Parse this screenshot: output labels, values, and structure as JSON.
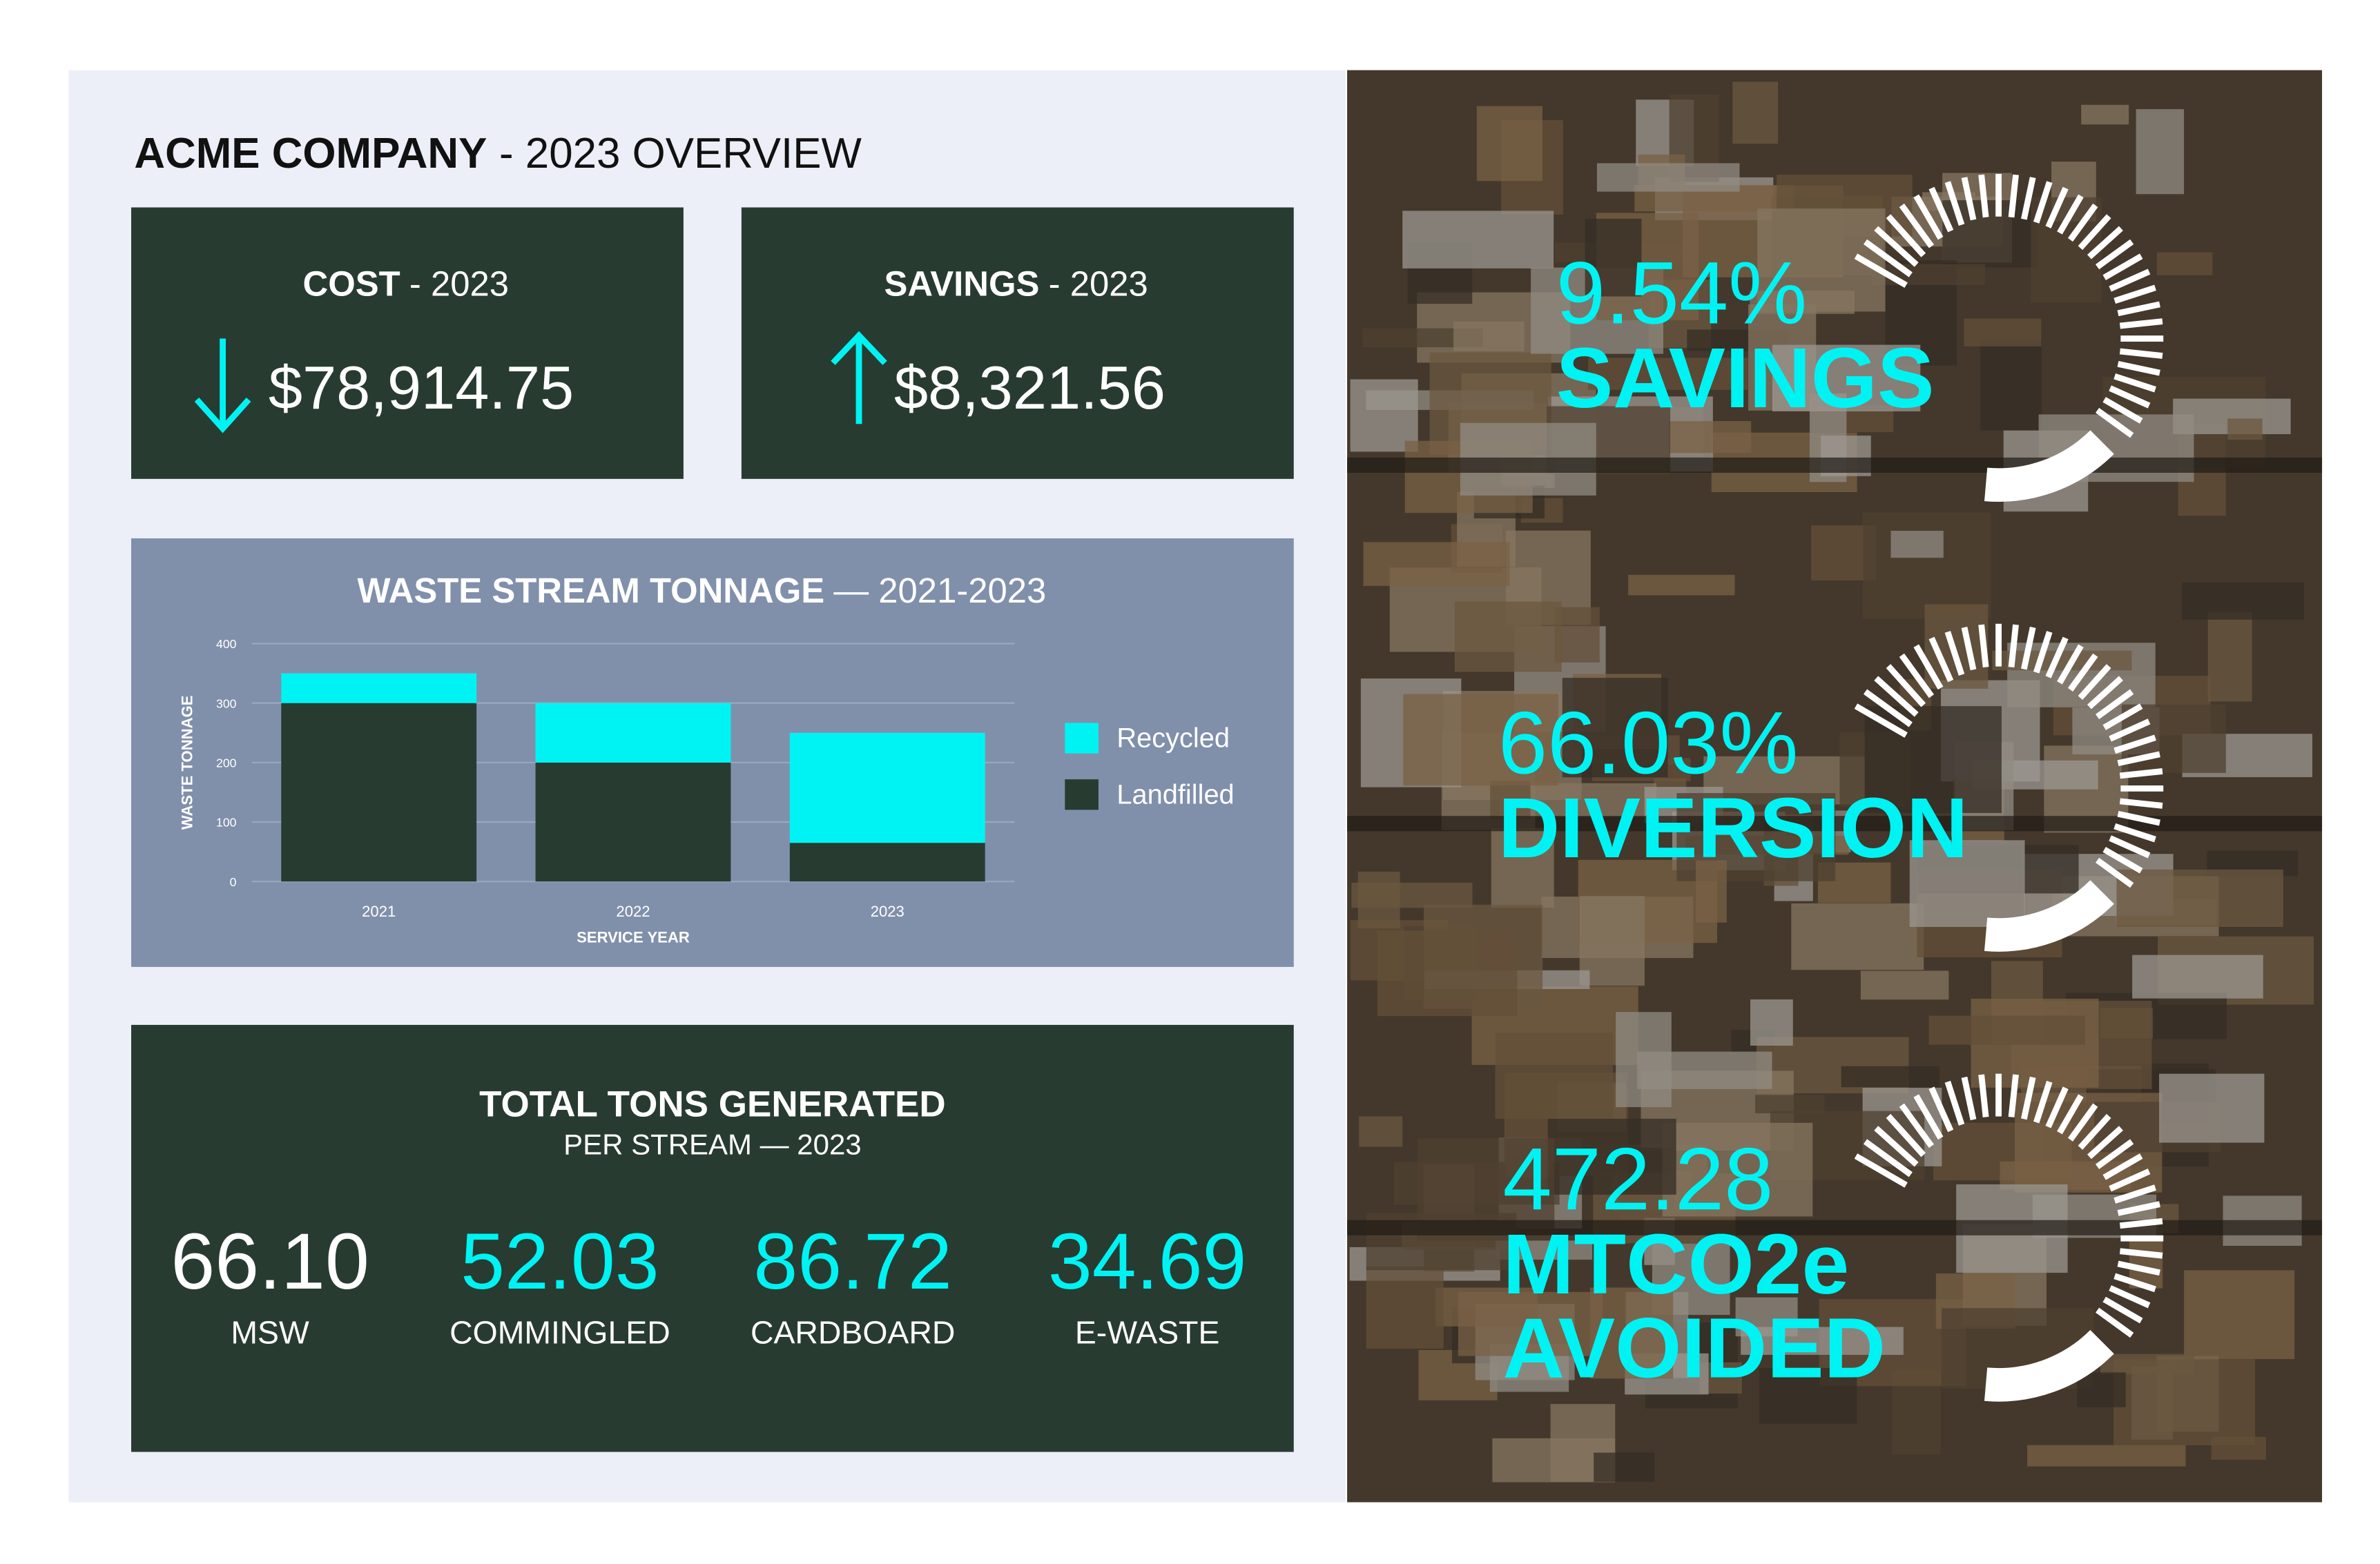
{
  "header": {
    "company": "ACME COMPANY",
    "subtitle": "- 2023 OVERVIEW"
  },
  "cards": [
    {
      "label": "COST",
      "period": "- 2023",
      "value": "$78,914.75",
      "trend": "down"
    },
    {
      "label": "SAVINGS",
      "period": "- 2023",
      "value": "$8,321.56",
      "trend": "up"
    }
  ],
  "chart_data": {
    "type": "bar",
    "stacked": true,
    "title": "WASTE STREAM TONNAGE",
    "subtitle": "— 2021-2023",
    "x_label": "SERVICE YEAR",
    "y_label": "WASTE TONNAGE",
    "categories": [
      "2021",
      "2022",
      "2023"
    ],
    "series": [
      {
        "name": "Recycled",
        "color": "#00f3f3",
        "values": [
          50,
          100,
          185
        ]
      },
      {
        "name": "Landfilled",
        "color": "#283b30",
        "values": [
          300,
          200,
          65
        ]
      }
    ],
    "ylim": [
      0,
      400
    ],
    "yticks": [
      0,
      100,
      200,
      300,
      400
    ],
    "grid": true,
    "legend": "right"
  },
  "totals": {
    "title": "TOTAL TONS GENERATED",
    "subtitle": "PER STREAM — 2023",
    "streams": [
      {
        "value": "66.10",
        "label": "MSW"
      },
      {
        "value": "52.03",
        "label": "COMMINGLED"
      },
      {
        "value": "86.72",
        "label": "CARDBOARD"
      },
      {
        "value": "34.69",
        "label": "E-WASTE"
      }
    ]
  },
  "highlights": [
    {
      "value": "9.54%",
      "label": [
        "SAVINGS"
      ]
    },
    {
      "value": "66.03%",
      "label": [
        "DIVERSION"
      ]
    },
    {
      "value": "472.28",
      "label": [
        "MTCO2e",
        "AVOIDED"
      ]
    }
  ]
}
